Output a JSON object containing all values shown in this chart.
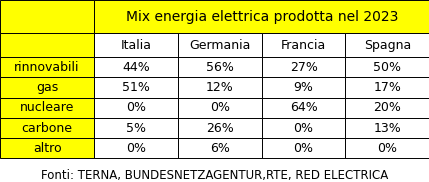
{
  "title": "Mix energia elettrica prodotta nel 2023",
  "columns": [
    "Italia",
    "Germania",
    "Francia",
    "Spagna"
  ],
  "rows": [
    "rinnovabili",
    "gas",
    "nucleare",
    "carbone",
    "altro"
  ],
  "values": [
    [
      "44%",
      "56%",
      "27%",
      "50%"
    ],
    [
      "51%",
      "12%",
      "9%",
      "17%"
    ],
    [
      "0%",
      "0%",
      "64%",
      "20%"
    ],
    [
      "5%",
      "26%",
      "0%",
      "13%"
    ],
    [
      "0%",
      "6%",
      "0%",
      "0%"
    ]
  ],
  "footer": "Fonti: TERNA, BUNDESNETZAGENTUR,RTE, RED ELECTRICA",
  "yellow": "#FFFF00",
  "white": "#FFFFFF",
  "black": "#000000",
  "title_fontsize": 10,
  "header_fontsize": 9,
  "cell_fontsize": 9,
  "footer_fontsize": 8.5
}
